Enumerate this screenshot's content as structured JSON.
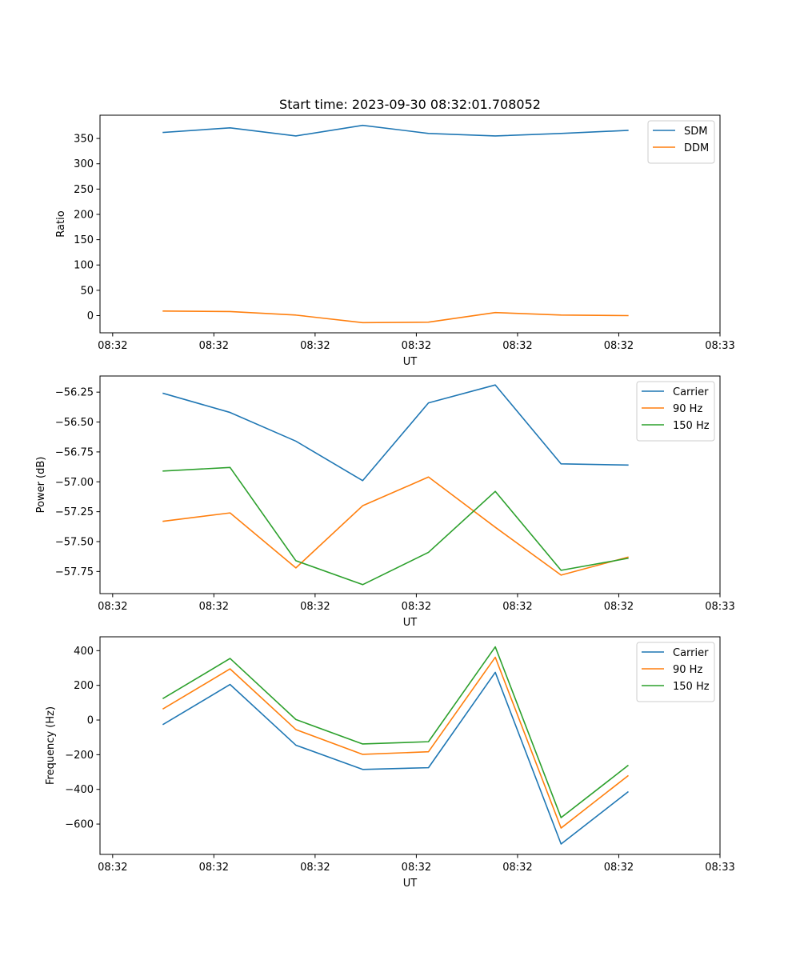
{
  "chart_data": [
    {
      "type": "line",
      "title": "Start time: 2023-09-30 08:32:01.708052",
      "xlabel": "UT",
      "ylabel": "Ratio",
      "xticks": [
        0,
        1,
        2,
        3,
        4,
        5,
        6
      ],
      "xtick_labels": [
        "08:32",
        "08:32",
        "08:32",
        "08:32",
        "08:32",
        "08:32",
        "08:33"
      ],
      "xlim": [
        -0.125,
        6.0
      ],
      "ylim": [
        -34,
        396
      ],
      "yticks": [
        0,
        50,
        100,
        150,
        200,
        250,
        300,
        350
      ],
      "ytick_labels": [
        "0",
        "50",
        "100",
        "150",
        "200",
        "250",
        "300",
        "350"
      ],
      "legend": "top-right",
      "x": [
        0.5,
        1.16,
        1.81,
        2.47,
        3.12,
        3.78,
        4.43,
        5.09
      ],
      "series": [
        {
          "name": "SDM",
          "color": "#1f77b4",
          "values": [
            362,
            371,
            355,
            376,
            360,
            355,
            360,
            366
          ]
        },
        {
          "name": "DDM",
          "color": "#ff7f0e",
          "values": [
            9,
            8,
            1,
            -14,
            -13,
            6,
            1,
            0
          ]
        }
      ]
    },
    {
      "type": "line",
      "title": "",
      "xlabel": "UT",
      "ylabel": "Power (dB)",
      "xticks": [
        0,
        1,
        2,
        3,
        4,
        5,
        6
      ],
      "xtick_labels": [
        "08:32",
        "08:32",
        "08:32",
        "08:32",
        "08:32",
        "08:32",
        "08:33"
      ],
      "xlim": [
        -0.125,
        6.0
      ],
      "ylim": [
        -57.935,
        -56.115
      ],
      "yticks": [
        -57.75,
        -57.5,
        -57.25,
        -57.0,
        -56.75,
        -56.5,
        -56.25
      ],
      "ytick_labels": [
        "−57.75",
        "−57.50",
        "−57.25",
        "−57.00",
        "−56.75",
        "−56.50",
        "−56.25"
      ],
      "legend": "top-right",
      "x": [
        0.5,
        1.16,
        1.81,
        2.47,
        3.12,
        3.78,
        4.43,
        5.09
      ],
      "series": [
        {
          "name": "Carrier",
          "color": "#1f77b4",
          "values": [
            -56.26,
            -56.42,
            -56.66,
            -56.99,
            -56.34,
            -56.19,
            -56.85,
            -56.86
          ]
        },
        {
          "name": "90 Hz",
          "color": "#ff7f0e",
          "values": [
            -57.33,
            -57.26,
            -57.72,
            -57.2,
            -56.96,
            -57.38,
            -57.78,
            -57.63
          ]
        },
        {
          "name": "150 Hz",
          "color": "#2ca02c",
          "values": [
            -56.91,
            -56.88,
            -57.66,
            -57.86,
            -57.59,
            -57.08,
            -57.74,
            -57.64
          ]
        }
      ]
    },
    {
      "type": "line",
      "title": "",
      "xlabel": "UT",
      "ylabel": "Frequency (Hz)",
      "xticks": [
        0,
        1,
        2,
        3,
        4,
        5,
        6
      ],
      "xtick_labels": [
        "08:32",
        "08:32",
        "08:32",
        "08:32",
        "08:32",
        "08:32",
        "08:33"
      ],
      "xlim": [
        -0.125,
        6.0
      ],
      "ylim": [
        -775,
        480
      ],
      "yticks": [
        -600,
        -400,
        -200,
        0,
        200,
        400
      ],
      "ytick_labels": [
        "−600",
        "−400",
        "−200",
        "0",
        "200",
        "400"
      ],
      "legend": "top-right",
      "x": [
        0.5,
        1.16,
        1.81,
        2.47,
        3.12,
        3.78,
        4.43,
        5.09
      ],
      "series": [
        {
          "name": "Carrier",
          "color": "#1f77b4",
          "values": [
            -25,
            205,
            -145,
            -285,
            -275,
            275,
            -715,
            -415
          ]
        },
        {
          "name": "90 Hz",
          "color": "#ff7f0e",
          "values": [
            65,
            295,
            -55,
            -198,
            -183,
            362,
            -623,
            -322
          ]
        },
        {
          "name": "150 Hz",
          "color": "#2ca02c",
          "values": [
            125,
            355,
            3,
            -138,
            -125,
            422,
            -563,
            -263
          ]
        }
      ]
    }
  ]
}
